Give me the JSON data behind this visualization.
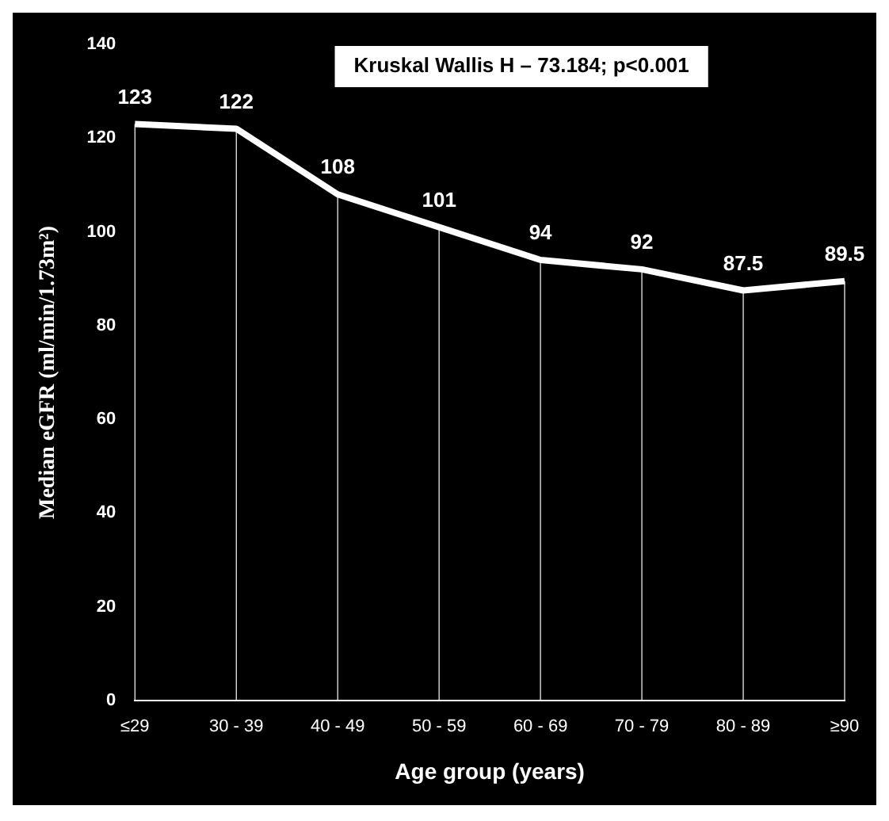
{
  "chart_data": {
    "type": "line",
    "categories": [
      "≤29",
      "30 - 39",
      "40 - 49",
      "50 - 59",
      "60 - 69",
      "70 - 79",
      "80 - 89",
      "≥90"
    ],
    "series": [
      {
        "color": "#ffffff",
        "values": [
          123,
          122,
          108,
          101,
          94,
          92,
          87.5,
          89.5
        ]
      }
    ],
    "xlabel": "Age group (years)",
    "ylabel": "Median eGFR (ml/min/1.73m²)",
    "ylim": [
      0,
      140
    ],
    "yticks": [
      0,
      20,
      40,
      60,
      80,
      100,
      120,
      140
    ],
    "annotations": [
      "Kruskal Wallis H – 73.184; p<0.001"
    ],
    "data_labels": true,
    "grid": "x",
    "legend": false,
    "marker": "none",
    "line_style": "solid"
  }
}
